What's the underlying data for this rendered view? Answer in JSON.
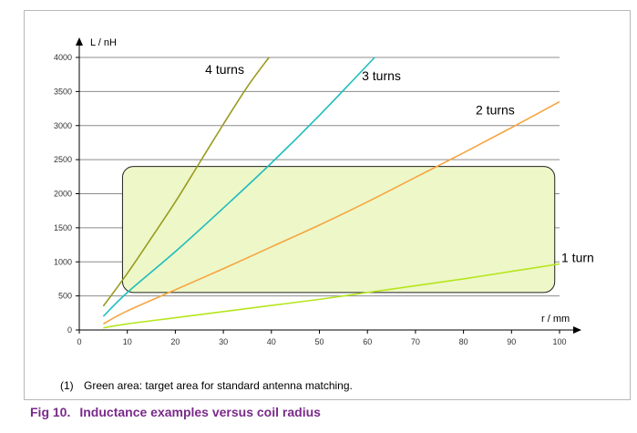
{
  "footnote": {
    "number": "(1)",
    "text": "Green area: target area for standard antenna matching."
  },
  "caption": {
    "fig": "Fig 10.",
    "title": "Inductance examples versus coil radius"
  },
  "chart_data": {
    "type": "line",
    "ylabel": "L / nH",
    "xlabel": "r / mm",
    "xlim": [
      0,
      100
    ],
    "ylim": [
      0,
      4000
    ],
    "xticks": [
      0,
      10,
      20,
      30,
      40,
      50,
      60,
      70,
      80,
      90,
      100
    ],
    "yticks": [
      0,
      500,
      1000,
      1500,
      2000,
      2500,
      3000,
      3500,
      4000
    ],
    "grid": "horizontal",
    "series": [
      {
        "name": "4 turns",
        "color": "#9a9a1e",
        "x": [
          5,
          10,
          15,
          20,
          25,
          30,
          35,
          39.5
        ],
        "y": [
          350,
          830,
          1350,
          1880,
          2450,
          3020,
          3570,
          4000
        ]
      },
      {
        "name": "3 turns",
        "color": "#1fbdbd",
        "x": [
          5,
          10,
          20,
          30,
          40,
          50,
          61.5
        ],
        "y": [
          200,
          550,
          1150,
          1790,
          2450,
          3150,
          4000
        ]
      },
      {
        "name": "2 turns",
        "color": "#f5a540",
        "x": [
          5,
          10,
          20,
          30,
          40,
          50,
          60,
          70,
          80,
          90,
          100
        ],
        "y": [
          90,
          280,
          590,
          900,
          1220,
          1540,
          1880,
          2240,
          2600,
          2970,
          3350
        ]
      },
      {
        "name": "1 turn",
        "color": "#b5e61d",
        "x": [
          5,
          10,
          20,
          30,
          40,
          50,
          60,
          70,
          80,
          90,
          100
        ],
        "y": [
          30,
          90,
          180,
          270,
          360,
          450,
          550,
          650,
          750,
          860,
          970
        ]
      }
    ],
    "target_area": {
      "label": "target area for standard antenna matching",
      "x_range": [
        9,
        99
      ],
      "y_range": [
        550,
        2400
      ],
      "fill": "#eef7c8",
      "stroke": "#222222"
    }
  }
}
